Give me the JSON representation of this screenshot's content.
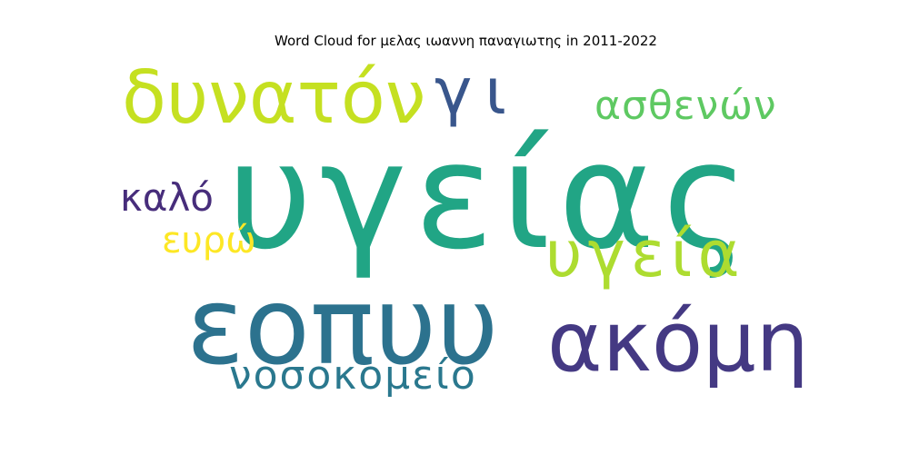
{
  "title": "Word Cloud for μελας ιωαννη παναγιωτης in 2011-2022",
  "words": [
    {
      "text": "υγείας",
      "weight": 100,
      "color": "#21a585"
    },
    {
      "text": "εοπυυ",
      "weight": 62,
      "color": "#2c728e"
    },
    {
      "text": "ακόμη",
      "weight": 50,
      "color": "#443983"
    },
    {
      "text": "δυνατόν",
      "weight": 42,
      "color": "#c5e021"
    },
    {
      "text": "υγεία",
      "weight": 35,
      "color": "#addc30"
    },
    {
      "text": "γι",
      "weight": 33,
      "color": "#39568c"
    },
    {
      "text": "ασθενών",
      "weight": 24,
      "color": "#5ec962"
    },
    {
      "text": "νοσοκομείο",
      "weight": 22,
      "color": "#2a788e"
    },
    {
      "text": "καλό",
      "weight": 20,
      "color": "#472d7b"
    },
    {
      "text": "ευρώ",
      "weight": 19,
      "color": "#fde725"
    }
  ]
}
